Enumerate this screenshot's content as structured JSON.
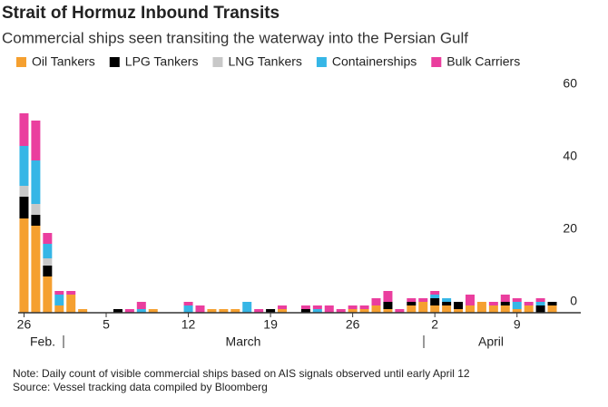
{
  "chart_data": {
    "type": "stacked-bar",
    "title": "Strait of Hormuz Inbound Transits",
    "subtitle": "Commercial ships seen transiting the waterway into the Persian Gulf",
    "categories": [
      "26",
      null,
      null,
      null,
      null,
      null,
      null,
      "5",
      null,
      null,
      null,
      null,
      null,
      null,
      "12",
      null,
      null,
      null,
      null,
      null,
      null,
      "19",
      null,
      null,
      null,
      null,
      null,
      null,
      "26",
      null,
      null,
      null,
      null,
      null,
      null,
      "2",
      null,
      null,
      null,
      null,
      null,
      null,
      "9",
      null,
      null,
      null
    ],
    "months": [
      "Feb.",
      "March",
      "April"
    ],
    "series": [
      {
        "name": "Oil Tankers",
        "color": "#f5a030",
        "values": [
          26,
          24,
          10,
          2,
          5,
          1,
          0,
          0,
          0,
          0,
          0,
          1,
          0,
          0,
          0,
          0,
          1,
          1,
          1,
          0,
          0,
          0,
          1,
          0,
          0,
          0,
          0,
          0,
          1,
          1,
          2,
          1,
          0,
          2,
          3,
          2,
          2,
          1,
          2,
          3,
          2,
          2,
          1,
          2,
          0,
          2
        ]
      },
      {
        "name": "LPG Tankers",
        "color": "#000000",
        "values": [
          6,
          3,
          3,
          0,
          0,
          0,
          0,
          0,
          1,
          0,
          0,
          0,
          0,
          0,
          0,
          0,
          0,
          0,
          0,
          0,
          0,
          1,
          0,
          0,
          1,
          0,
          0,
          0,
          0,
          0,
          0,
          2,
          0,
          1,
          0,
          2,
          1,
          2,
          0,
          0,
          0,
          1,
          0,
          0,
          2,
          1
        ]
      },
      {
        "name": "LNG Tankers",
        "color": "#c8c8c8",
        "values": [
          3,
          3,
          2,
          0,
          0,
          0,
          0,
          0,
          0,
          0,
          0,
          0,
          0,
          0,
          0,
          0,
          0,
          0,
          0,
          0,
          0,
          0,
          0,
          0,
          0,
          0,
          0,
          0,
          0,
          0,
          0,
          0,
          0,
          0,
          0,
          0,
          0,
          0,
          0,
          0,
          0,
          0,
          0,
          0,
          0,
          0
        ]
      },
      {
        "name": "Containerships",
        "color": "#36b6e6",
        "values": [
          11,
          12,
          4,
          3,
          0,
          0,
          0,
          0,
          0,
          0,
          1,
          0,
          0,
          0,
          2,
          0,
          0,
          0,
          0,
          3,
          0,
          0,
          0,
          0,
          0,
          1,
          0,
          0,
          0,
          0,
          0,
          0,
          0,
          0,
          0,
          1,
          1,
          0,
          0,
          0,
          0,
          0,
          2,
          0,
          1,
          0
        ]
      },
      {
        "name": "Bulk Carriers",
        "color": "#ea3e9e",
        "values": [
          9,
          11,
          3,
          1,
          1,
          0,
          0,
          0,
          0,
          1,
          2,
          0,
          0,
          0,
          1,
          2,
          0,
          0,
          0,
          0,
          1,
          0,
          1,
          0,
          1,
          1,
          2,
          1,
          1,
          1,
          2,
          3,
          1,
          1,
          1,
          1,
          0,
          0,
          3,
          0,
          1,
          2,
          1,
          1,
          1,
          0
        ]
      }
    ],
    "ylim": [
      0,
      60
    ],
    "yticks": [
      0,
      20,
      40,
      60
    ],
    "grid": false,
    "notes": [
      "Note: Daily count of visible commercial ships based on AIS signals observed until early April 12",
      "Source: Vessel tracking data compiled by Bloomberg"
    ]
  }
}
